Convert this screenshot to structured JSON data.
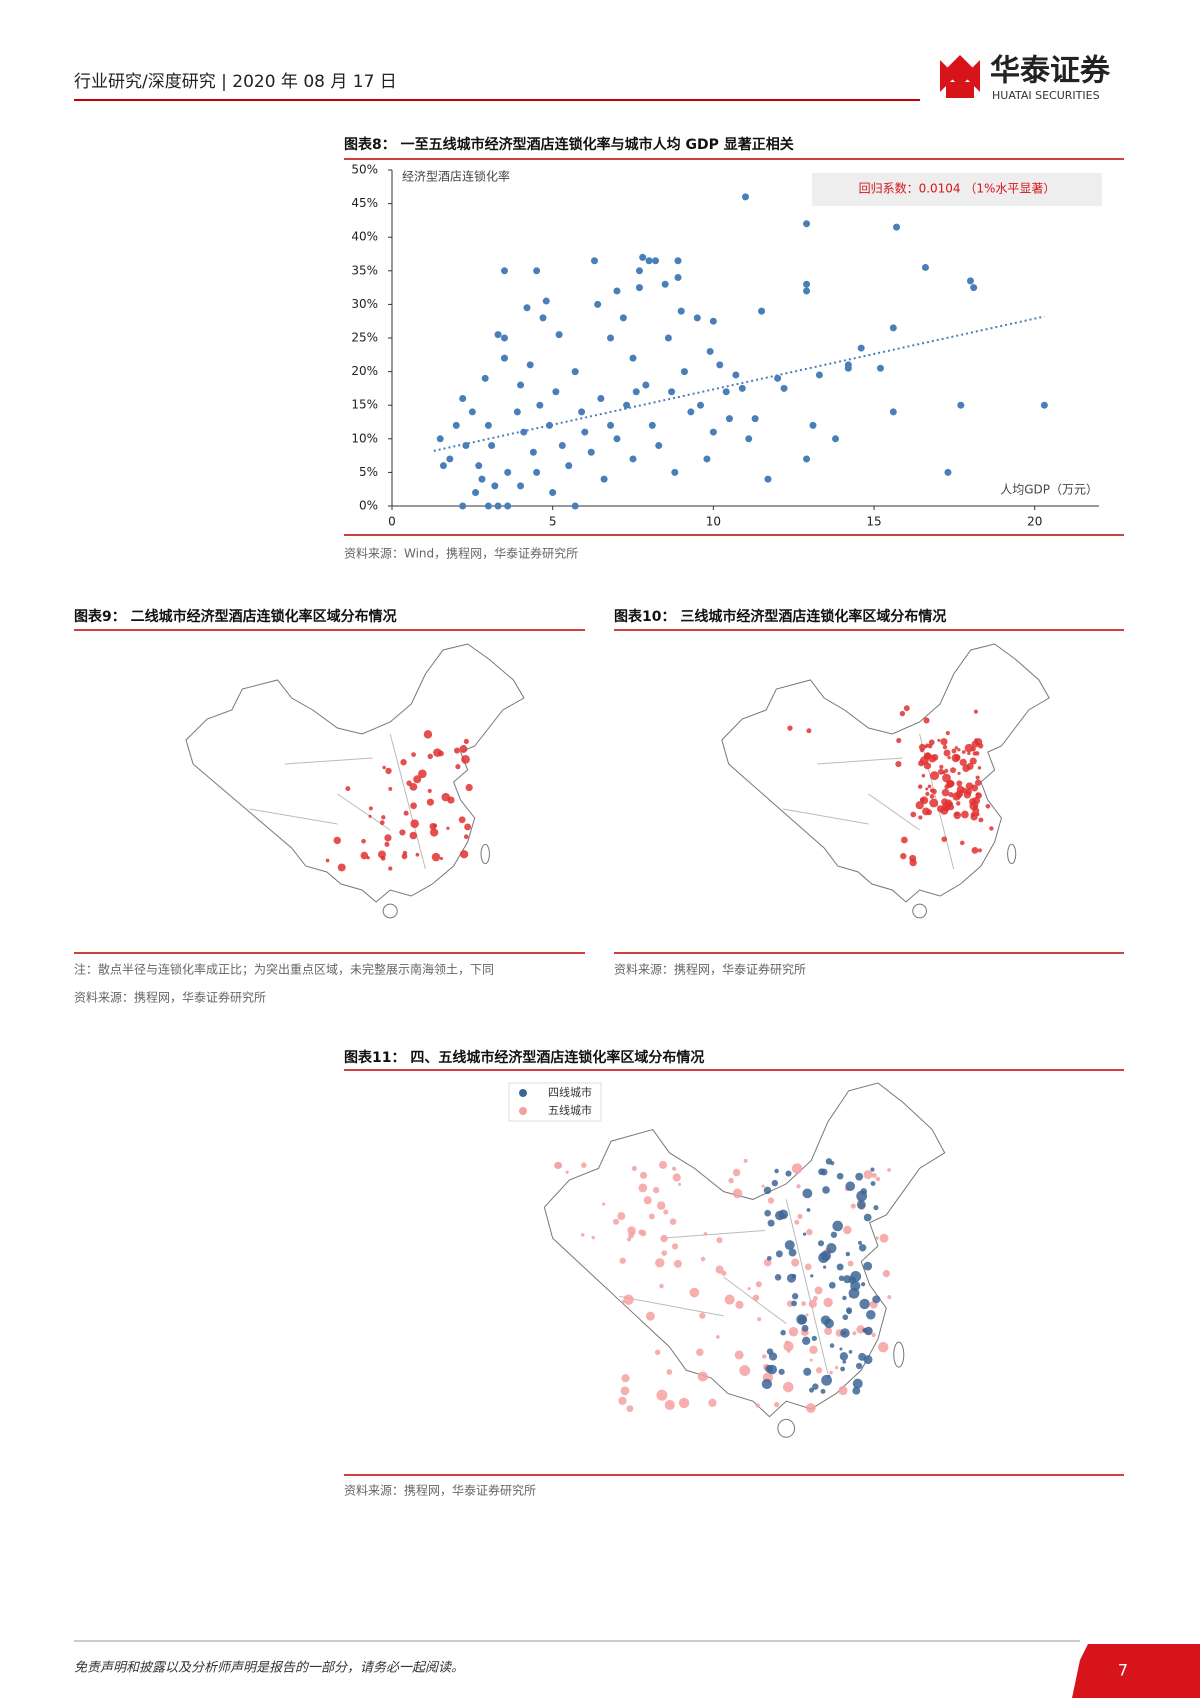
{
  "header": {
    "left": "行业研究/深度研究 | 2020 年 08 月 17 日",
    "brand": "华泰证券",
    "brand_en": "HUATAI SECURITIES"
  },
  "chart_data": {
    "type": "scatter",
    "title": "图表8：  一至五线城市经济型酒店连锁化率与城市人均 GDP 显著正相关",
    "y_label": "经济型酒店连锁化率",
    "x_label": "人均GDP（万元）",
    "annotation": "回归系数：0.0104 （1%水平显著）",
    "xlim": [
      0,
      22
    ],
    "ylim": [
      0,
      50
    ],
    "xticks": [
      0,
      5,
      10,
      15,
      20
    ],
    "yticks": [
      {
        "value": 0,
        "label": "0%"
      },
      {
        "value": 5,
        "label": "5%"
      },
      {
        "value": 10,
        "label": "10%"
      },
      {
        "value": 15,
        "label": "15%"
      },
      {
        "value": 20,
        "label": "20%"
      },
      {
        "value": 25,
        "label": "25%"
      },
      {
        "value": 30,
        "label": "30%"
      },
      {
        "value": 35,
        "label": "35%"
      },
      {
        "value": 40,
        "label": "40%"
      },
      {
        "value": 45,
        "label": "45%"
      },
      {
        "value": 50,
        "label": "50%"
      }
    ],
    "trendline": {
      "x": [
        1.3,
        20.3
      ],
      "y": [
        8.2,
        28.2
      ]
    },
    "series": [
      {
        "color": "#4a7ebb",
        "x": [
          11,
          12.9,
          15.7,
          16.6,
          18,
          18.1,
          12.9,
          12.9,
          20.3,
          17.3,
          17.7,
          15.6,
          15.6,
          14.2,
          14.2,
          15.2,
          14.6,
          13.3,
          13.8,
          13.1,
          12.9,
          11.7,
          12.2,
          12,
          11.5,
          10.9,
          10.7,
          10.4,
          10.2,
          10.5,
          10,
          9.8,
          9.3,
          10,
          9.5,
          9,
          8.6,
          8.9,
          8.9,
          8,
          7.8,
          8.2,
          7.7,
          7.7,
          8.5,
          6.3,
          6.4,
          7,
          7.2,
          4.5,
          4.2,
          4.8,
          4.7,
          5.2,
          3.3,
          3.5,
          3.5,
          3.5,
          4.3,
          1.5,
          1.6,
          1.8,
          2,
          2.3,
          2.5,
          2.7,
          2.8,
          2.9,
          3,
          3.1,
          3.2,
          3.3,
          3,
          2.2,
          3.6,
          5.7,
          3.9,
          4,
          4.1,
          4.4,
          4.6,
          4.9,
          5.1,
          5.3,
          5.5,
          5.7,
          5.9,
          6,
          6.2,
          6.5,
          6.8,
          7,
          7.3,
          7.5,
          7.9,
          8.1,
          8.3,
          8.8,
          9.1,
          7.5,
          6.6,
          4,
          3.6,
          2.6,
          2.2,
          4.5,
          5,
          6.8,
          7.6,
          8.7,
          9.6,
          9.9,
          11.3,
          11.1
        ],
        "values": [
          46,
          42,
          41.5,
          35.5,
          33.5,
          32.5,
          33,
          32,
          15,
          5,
          15,
          14,
          26.5,
          21,
          20.5,
          20.5,
          23.5,
          19.5,
          10,
          12,
          7,
          4,
          17.5,
          19,
          29,
          17.5,
          19.5,
          17,
          21,
          13,
          11,
          7,
          14,
          27.5,
          28,
          29,
          25,
          36.5,
          34,
          36.5,
          37,
          36.5,
          35,
          32.5,
          33,
          36.5,
          30,
          32,
          28,
          35,
          29.5,
          30.5,
          28,
          25.5,
          25.5,
          25,
          22,
          35,
          21,
          10,
          6,
          7,
          12,
          9,
          14,
          6,
          4,
          19,
          12,
          9,
          3,
          0,
          0,
          0,
          0,
          0,
          14,
          18,
          11,
          8,
          15,
          12,
          17,
          9,
          6,
          20,
          14,
          11,
          8,
          16,
          12,
          10,
          15,
          7,
          18,
          12,
          9,
          5,
          20,
          22,
          4,
          3,
          5,
          2,
          16,
          5,
          2,
          25,
          17,
          17,
          15,
          23,
          13,
          10
        ]
      }
    ]
  },
  "source8": "资料来源：Wind，携程网，华泰证券研究所",
  "figure9": {
    "title": "图表9：  二线城市经济型酒店连锁化率区域分布情况",
    "note": "注：散点半径与连锁化率成正比；为突出重点区域，未完整展示南海领土，下同",
    "source": "资料来源：携程网，华泰证券研究所"
  },
  "figure10": {
    "title": "图表10：  三线城市经济型酒店连锁化率区域分布情况",
    "source": "资料来源：携程网，华泰证券研究所"
  },
  "figure11": {
    "title": "图表11：  四、五线城市经济型酒店连锁化率区域分布情况",
    "legend": [
      {
        "name": "四线城市",
        "color": "#3d6696"
      },
      {
        "name": "五线城市",
        "color": "#f4a0a0"
      }
    ],
    "source": "资料来源：携程网，华泰证券研究所"
  },
  "footer": {
    "text": "免责声明和披露以及分析师声明是报告的一部分，请务必一起阅读。",
    "page": "7"
  }
}
